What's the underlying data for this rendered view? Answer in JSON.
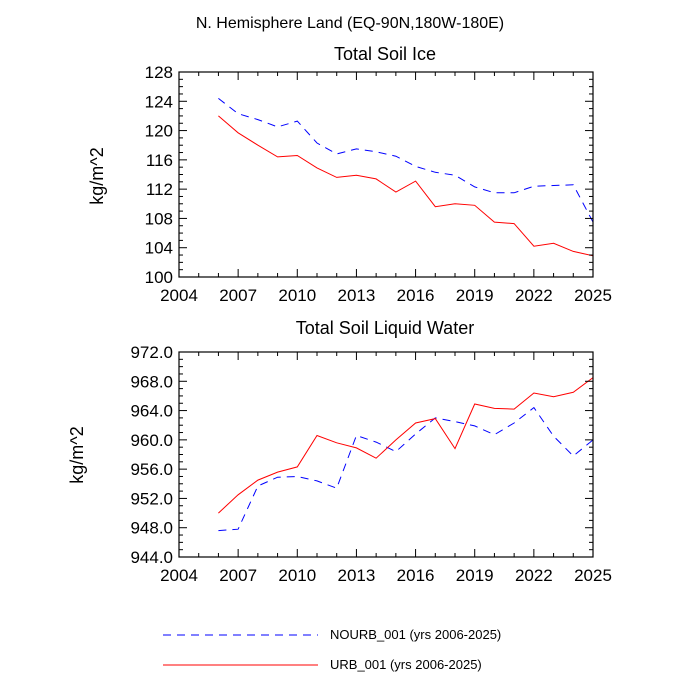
{
  "figure": {
    "title": "N. Hemisphere Land (EQ-90N,180W-180E)"
  },
  "chart_data": [
    {
      "type": "line",
      "title": "Total Soil Ice",
      "xlabel": "",
      "ylabel": "kg/m^2",
      "xlim": [
        2004,
        2025
      ],
      "ylim": [
        100,
        128
      ],
      "xticks": [
        2004,
        2007,
        2010,
        2013,
        2016,
        2019,
        2022,
        2025
      ],
      "xtick_labels": [
        "2004",
        "2007",
        "2010",
        "2013",
        "2016",
        "2019",
        "2022",
        "2025"
      ],
      "yticks": [
        100,
        104,
        108,
        112,
        116,
        120,
        124,
        128
      ],
      "ytick_labels": [
        "100",
        "104",
        "108",
        "112",
        "116",
        "120",
        "124",
        "128"
      ],
      "grid": false,
      "x": [
        2006,
        2007,
        2008,
        2009,
        2010,
        2011,
        2012,
        2013,
        2014,
        2015,
        2016,
        2017,
        2018,
        2019,
        2020,
        2021,
        2022,
        2023,
        2024,
        2025
      ],
      "series": [
        {
          "name": "NOURB_001 (yrs 2006-2025)",
          "color": "#0000ff",
          "style": "dashed",
          "values": [
            124.4,
            122.3,
            121.5,
            120.5,
            121.3,
            118.3,
            116.8,
            117.5,
            117.1,
            116.5,
            115.1,
            114.3,
            113.9,
            112.3,
            111.5,
            111.5,
            112.4,
            112.5,
            112.6,
            107.5
          ]
        },
        {
          "name": "URB_001 (yrs 2006-2025)",
          "color": "#ff0000",
          "style": "solid",
          "values": [
            122.0,
            119.7,
            118.0,
            116.4,
            116.6,
            114.9,
            113.6,
            113.9,
            113.4,
            111.6,
            113.1,
            109.6,
            110.0,
            109.8,
            107.5,
            107.3,
            104.2,
            104.6,
            103.5,
            102.9
          ]
        }
      ]
    },
    {
      "type": "line",
      "title": "Total Soil Liquid Water",
      "xlabel": "",
      "ylabel": "kg/m^2",
      "xlim": [
        2004,
        2025
      ],
      "ylim": [
        944,
        972
      ],
      "xticks": [
        2004,
        2007,
        2010,
        2013,
        2016,
        2019,
        2022,
        2025
      ],
      "xtick_labels": [
        "2004",
        "2007",
        "2010",
        "2013",
        "2016",
        "2019",
        "2022",
        "2025"
      ],
      "yticks": [
        944,
        948,
        952,
        956,
        960,
        964,
        968,
        972
      ],
      "ytick_labels": [
        "944.0",
        "948.0",
        "952.0",
        "956.0",
        "960.0",
        "964.0",
        "968.0",
        "972.0"
      ],
      "grid": false,
      "x": [
        2006,
        2007,
        2008,
        2009,
        2010,
        2011,
        2012,
        2013,
        2014,
        2015,
        2016,
        2017,
        2018,
        2019,
        2020,
        2021,
        2022,
        2023,
        2024,
        2025
      ],
      "series": [
        {
          "name": "NOURB_001 (yrs 2006-2025)",
          "color": "#0000ff",
          "style": "dashed",
          "values": [
            947.6,
            947.8,
            953.7,
            954.9,
            955.0,
            954.4,
            953.4,
            960.6,
            959.7,
            958.4,
            960.8,
            963.0,
            962.5,
            961.9,
            960.7,
            962.3,
            964.4,
            960.5,
            957.8,
            960.0
          ]
        },
        {
          "name": "URB_001 (yrs 2006-2025)",
          "color": "#ff0000",
          "style": "solid",
          "values": [
            950.0,
            952.5,
            954.5,
            955.6,
            956.3,
            960.6,
            959.6,
            958.9,
            957.5,
            960.0,
            962.3,
            962.9,
            958.8,
            964.9,
            964.3,
            964.2,
            966.4,
            965.9,
            966.5,
            968.5
          ]
        }
      ]
    }
  ],
  "legend": {
    "placement": "bottom",
    "entries": [
      {
        "label": "NOURB_001 (yrs 2006-2025)",
        "color": "#0000ff",
        "style": "dashed"
      },
      {
        "label": "URB_001 (yrs 2006-2025)",
        "color": "#ff0000",
        "style": "solid"
      }
    ]
  }
}
